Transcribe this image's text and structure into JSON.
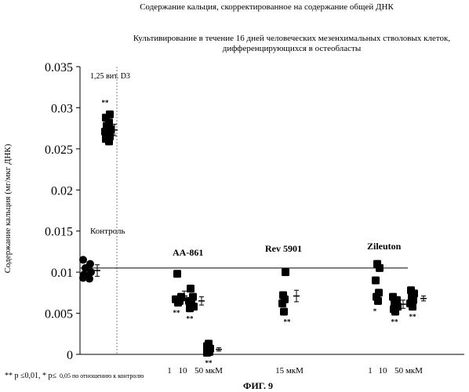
{
  "title": "Содержание кальция, скорректированное на содержание общей ДНК",
  "subtitle_line1": "Культивирование в течение 16 дней человеческих мезенхимальных стволовых клеток,",
  "subtitle_line2": "дифференцирующихся в остеобласты",
  "ylabel": "Содержание кальция (мг/мкг ДНК)",
  "footnote_main": "** p ≤0,01, * p≤",
  "footnote_small": "0,05 по отношению к контролю",
  "figure_caption": "ФИГ. 9",
  "chart_data": {
    "type": "scatter",
    "ylim": [
      0,
      0.035
    ],
    "yticks": [
      "0",
      "0.005",
      "0.01",
      "0.015",
      "0.02",
      "0.025",
      "0.03",
      "0.035"
    ],
    "control_line": 0.0105,
    "annotations": {
      "vitd3": "1,25 вит. D3",
      "control": "Контроль",
      "aa861": "AA-861",
      "rev5901": "Rev 5901",
      "zileuton": "Zileuton"
    },
    "xlabels": [
      {
        "text": "1",
        "group": "aa861"
      },
      {
        "text": "10",
        "group": "aa861"
      },
      {
        "text": "50 мкМ",
        "group": "aa861"
      },
      {
        "text": "15 мкМ",
        "group": "rev5901"
      },
      {
        "text": "1",
        "group": "zileuton"
      },
      {
        "text": "10",
        "group": "zileuton"
      },
      {
        "text": "50 мкМ",
        "group": "zileuton"
      }
    ],
    "groups": [
      {
        "key": "control",
        "marker": "circle",
        "points": [
          0.0115,
          0.011,
          0.0105,
          0.01,
          0.0097,
          0.0095,
          0.0093,
          0.0092
        ],
        "mean": 0.0102,
        "err": 0.0007,
        "sig": ""
      },
      {
        "key": "vitd3",
        "marker": "square",
        "points": [
          0.0292,
          0.0288,
          0.0282,
          0.0278,
          0.0274,
          0.0271,
          0.0268,
          0.0265,
          0.0262,
          0.0259
        ],
        "mean": 0.0273,
        "err": 0.0007,
        "sig": "**"
      },
      {
        "key": "aa861_1",
        "marker": "square",
        "points": [
          0.0098,
          0.007,
          0.0067,
          0.0065,
          0.0063
        ],
        "mean": 0.0071,
        "err": 0.0006,
        "sig": "**"
      },
      {
        "key": "aa861_10",
        "marker": "square",
        "points": [
          0.008,
          0.007,
          0.0065,
          0.0062,
          0.0058,
          0.0056
        ],
        "mean": 0.0065,
        "err": 0.0005,
        "sig": "**"
      },
      {
        "key": "aa861_50",
        "marker": "square",
        "points": [
          0.0013,
          0.001,
          0.0007,
          0.0005,
          0.0003,
          0.0002
        ],
        "mean": 0.0006,
        "err": 0.0002,
        "sig": "**"
      },
      {
        "key": "rev5901_15",
        "marker": "square",
        "points": [
          0.01,
          0.0072,
          0.0067,
          0.0062,
          0.0052
        ],
        "mean": 0.0071,
        "err": 0.0007,
        "sig": "**"
      },
      {
        "key": "zileuton_1",
        "marker": "square",
        "points": [
          0.011,
          0.0105,
          0.009,
          0.0075,
          0.007,
          0.0065
        ],
        "mean": 0.0086,
        "err": 0.0006,
        "sig": "*"
      },
      {
        "key": "zileuton_10",
        "marker": "square",
        "points": [
          0.007,
          0.0066,
          0.0062,
          0.0058,
          0.0055,
          0.0052
        ],
        "mean": 0.0061,
        "err": 0.0005,
        "sig": "**"
      },
      {
        "key": "zileuton_50",
        "marker": "square",
        "points": [
          0.0078,
          0.0074,
          0.007,
          0.0066,
          0.0062,
          0.0058
        ],
        "mean": 0.0068,
        "err": 0.0003,
        "sig": "**"
      }
    ]
  }
}
